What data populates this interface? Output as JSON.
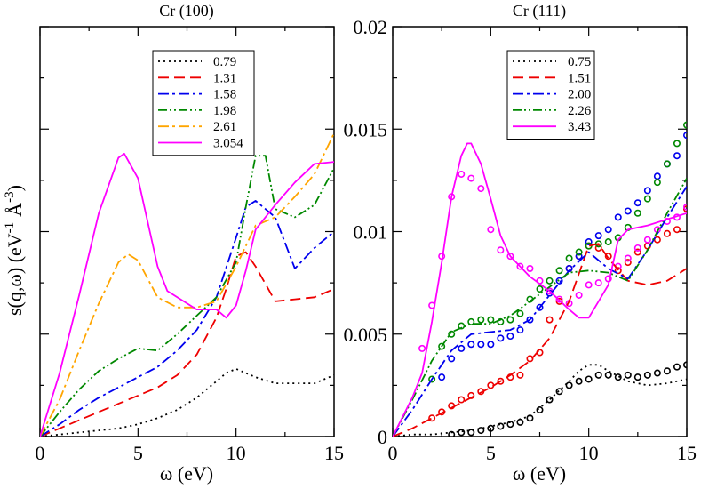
{
  "figure": {
    "ylabel_text": "s(q,ω)  (eV",
    "ylabel_sup1": "-1",
    "ylabel_angstrom": "Å",
    "ylabel_sup2": "-3",
    "ylabel_close": ")"
  },
  "chart_data": [
    {
      "type": "line",
      "title": "Cr (100)",
      "xlabel": "ω  (eV)",
      "ylabel": "s(q,ω)  (eV-1 Å-3)",
      "xlim": [
        0,
        15
      ],
      "ylim": [
        0,
        0.02
      ],
      "xticks": [
        0,
        5,
        10,
        15
      ],
      "xtick_labels": [
        "0",
        "5",
        "10",
        "15"
      ],
      "y_tick_labels_shown": false,
      "legend_position": "top-center",
      "series": [
        {
          "name": "0.79",
          "color": "#000000",
          "dash": "2,4",
          "x": [
            0,
            1,
            2,
            3,
            4,
            5,
            6,
            7,
            8,
            9,
            9.5,
            10,
            10.5,
            11,
            12,
            13,
            14,
            15
          ],
          "y": [
            0,
            0.0001,
            0.0002,
            0.0003,
            0.0004,
            0.0006,
            0.0009,
            0.0013,
            0.0019,
            0.0027,
            0.0031,
            0.0033,
            0.0031,
            0.0029,
            0.0026,
            0.0026,
            0.0026,
            0.003
          ]
        },
        {
          "name": "1.31",
          "color": "#ee0000",
          "dash": "12,6",
          "x": [
            0,
            1,
            2,
            3,
            4,
            5,
            6,
            7,
            8,
            9,
            9.5,
            10,
            10.5,
            11,
            12,
            13,
            14,
            15
          ],
          "y": [
            0,
            0.0004,
            0.0008,
            0.0012,
            0.0016,
            0.002,
            0.0024,
            0.003,
            0.004,
            0.0058,
            0.0072,
            0.0088,
            0.009,
            0.0083,
            0.0066,
            0.0067,
            0.0068,
            0.0072
          ]
        },
        {
          "name": "1.58",
          "color": "#0000ee",
          "dash": "12,4,3,4",
          "x": [
            0,
            1,
            2,
            3,
            4,
            5,
            6,
            7,
            8,
            9,
            10,
            10.5,
            11,
            12,
            13,
            14,
            15
          ],
          "y": [
            0,
            0.0006,
            0.0013,
            0.0019,
            0.0024,
            0.0029,
            0.0034,
            0.0042,
            0.0052,
            0.0068,
            0.0097,
            0.0112,
            0.0115,
            0.0107,
            0.0082,
            0.0092,
            0.01
          ]
        },
        {
          "name": "1.98",
          "color": "#008800",
          "dash": "10,3,2,3,2,3",
          "x": [
            0,
            1,
            2,
            3,
            4,
            5,
            6,
            7,
            8,
            9,
            10,
            10.5,
            11,
            11.5,
            12,
            13,
            14,
            15
          ],
          "y": [
            0,
            0.0012,
            0.0023,
            0.0032,
            0.0038,
            0.0043,
            0.0042,
            0.005,
            0.0059,
            0.0068,
            0.0085,
            0.0112,
            0.0137,
            0.0137,
            0.0111,
            0.0107,
            0.0113,
            0.0131
          ]
        },
        {
          "name": "2.61",
          "color": "#ffa500",
          "dash": "12,4,3,4",
          "x": [
            0,
            1,
            2,
            3,
            4,
            4.5,
            5,
            6,
            7,
            8,
            9,
            10,
            11,
            12,
            13,
            14,
            15
          ],
          "y": [
            0,
            0.0018,
            0.0042,
            0.0065,
            0.0085,
            0.0089,
            0.0086,
            0.0068,
            0.0063,
            0.0063,
            0.0066,
            0.0083,
            0.0103,
            0.0107,
            0.0117,
            0.0128,
            0.0148
          ]
        },
        {
          "name": "3.054",
          "color": "#ff00ff",
          "dash": "",
          "x": [
            0,
            1,
            2,
            3,
            4,
            4.3,
            5,
            6,
            6.5,
            7,
            8,
            9,
            9.5,
            10,
            10.5,
            11,
            12,
            13,
            14,
            15
          ],
          "y": [
            0,
            0.0031,
            0.0069,
            0.0109,
            0.0136,
            0.0138,
            0.0126,
            0.0083,
            0.0071,
            0.0068,
            0.0062,
            0.0062,
            0.0058,
            0.0064,
            0.0081,
            0.0101,
            0.0113,
            0.0124,
            0.0133,
            0.0134
          ]
        }
      ]
    },
    {
      "type": "line",
      "title": "Cr (111)",
      "xlabel": "ω  (eV)",
      "ylabel": "",
      "xlim": [
        0,
        15
      ],
      "ylim": [
        0,
        0.02
      ],
      "xticks": [
        0,
        5,
        10,
        15
      ],
      "xtick_labels": [
        "0",
        "5",
        "10",
        "15"
      ],
      "yticks": [
        0,
        0.005,
        0.01,
        0.015,
        0.02
      ],
      "ytick_labels": [
        "0",
        "0.005",
        "0.01",
        "0.015",
        "0.02"
      ],
      "legend_position": "top-center",
      "series": [
        {
          "name": "0.75",
          "color": "#000000",
          "dash": "2,4",
          "x": [
            0,
            1,
            2,
            3,
            4,
            5,
            6,
            7,
            8,
            9,
            9.5,
            10,
            10.5,
            11,
            12,
            13,
            14,
            15
          ],
          "y": [
            0,
            0.0001,
            0.0001,
            0.0002,
            0.0003,
            0.0005,
            0.0007,
            0.001,
            0.0018,
            0.0027,
            0.0032,
            0.0035,
            0.0035,
            0.0032,
            0.0027,
            0.0025,
            0.0026,
            0.0028
          ]
        },
        {
          "name": "1.51",
          "color": "#ee0000",
          "dash": "12,6",
          "x": [
            0,
            1,
            2,
            3,
            4,
            5,
            6,
            7,
            8,
            9,
            10,
            10.5,
            11,
            12,
            13,
            14,
            15
          ],
          "y": [
            0,
            0.0004,
            0.0009,
            0.0014,
            0.0019,
            0.0024,
            0.003,
            0.0037,
            0.0048,
            0.0066,
            0.0093,
            0.0094,
            0.0087,
            0.0076,
            0.0074,
            0.0076,
            0.0082
          ]
        },
        {
          "name": "2.00",
          "color": "#0000ee",
          "dash": "12,4,3,4",
          "x": [
            0,
            1,
            2,
            3,
            4,
            5,
            6,
            7,
            8,
            9,
            10,
            11,
            12,
            13,
            14,
            15
          ],
          "y": [
            0,
            0.0013,
            0.0028,
            0.0042,
            0.005,
            0.0051,
            0.0052,
            0.0057,
            0.0069,
            0.0081,
            0.009,
            0.0082,
            0.0077,
            0.0091,
            0.0107,
            0.0122
          ]
        },
        {
          "name": "2.26",
          "color": "#008800",
          "dash": "10,3,2,3,2,3",
          "x": [
            0,
            1,
            2,
            3,
            4,
            5,
            6,
            7,
            8,
            9,
            10,
            11,
            12,
            13,
            14,
            15
          ],
          "y": [
            0,
            0.0018,
            0.0037,
            0.0051,
            0.0055,
            0.0055,
            0.0059,
            0.0066,
            0.0073,
            0.008,
            0.0081,
            0.008,
            0.0076,
            0.0091,
            0.0109,
            0.0126
          ]
        },
        {
          "name": "3.43",
          "color": "#ff00ff",
          "dash": "",
          "x": [
            0,
            1,
            1.5,
            2,
            2.5,
            3,
            3.5,
            3.8,
            4,
            4.5,
            5,
            5.5,
            6,
            7,
            8,
            9,
            9.5,
            10,
            10.5,
            11,
            11.5,
            12,
            13,
            14,
            15
          ],
          "y": [
            0,
            0.0019,
            0.0031,
            0.0056,
            0.0085,
            0.0117,
            0.0137,
            0.0143,
            0.0143,
            0.0133,
            0.0116,
            0.0098,
            0.0088,
            0.0078,
            0.0071,
            0.0062,
            0.0058,
            0.0058,
            0.0066,
            0.0074,
            0.0096,
            0.0101,
            0.0103,
            0.0106,
            0.0109
          ]
        }
      ],
      "scatter_series": [
        {
          "name": "0.75 (circles)",
          "color": "#000000",
          "x": [
            3,
            3.5,
            4,
            4.5,
            5,
            5.5,
            6,
            6.5,
            7,
            7.5,
            8,
            8.5,
            9,
            9.5,
            10,
            10.5,
            11,
            11.5,
            12,
            12.5,
            13,
            13.5,
            14,
            14.5,
            15
          ],
          "y": [
            0.0001,
            0.0002,
            0.0002,
            0.0003,
            0.0004,
            0.0005,
            0.0006,
            0.0007,
            0.0009,
            0.0013,
            0.0018,
            0.0022,
            0.0025,
            0.0027,
            0.0028,
            0.003,
            0.003,
            0.0029,
            0.003,
            0.0029,
            0.003,
            0.0031,
            0.0032,
            0.0034,
            0.0035
          ]
        },
        {
          "name": "1.51 (circles)",
          "color": "#ee0000",
          "x": [
            2,
            2.5,
            3,
            3.5,
            4,
            4.5,
            5,
            5.5,
            6,
            6.5,
            7,
            7.5,
            8,
            8.5,
            9,
            9.5,
            10,
            10.5,
            11,
            11.5,
            12,
            12.5,
            13,
            13.5,
            14,
            14.5,
            15
          ],
          "y": [
            0.0009,
            0.0012,
            0.0015,
            0.0018,
            0.002,
            0.0022,
            0.0025,
            0.0027,
            0.0029,
            0.003,
            0.0038,
            0.0041,
            0.0057,
            0.0066,
            0.0082,
            0.0088,
            0.0093,
            0.0092,
            0.0088,
            0.0081,
            0.0085,
            0.009,
            0.0093,
            0.0096,
            0.0099,
            0.0101,
            0.0111
          ]
        },
        {
          "name": "2.00 (circles)",
          "color": "#0000ee",
          "x": [
            2.5,
            3,
            3.5,
            4,
            4.5,
            5,
            5.5,
            6,
            6.5,
            7,
            7.5,
            8,
            8.5,
            9,
            9.5,
            10,
            10.5,
            11,
            11.5,
            12,
            12.5,
            13,
            13.5,
            14,
            14.5,
            15
          ],
          "y": [
            0.0029,
            0.0038,
            0.0043,
            0.0045,
            0.0045,
            0.0045,
            0.0048,
            0.0049,
            0.0052,
            0.0057,
            0.0063,
            0.007,
            0.0076,
            0.0082,
            0.0088,
            0.0095,
            0.0098,
            0.0101,
            0.0107,
            0.011,
            0.0114,
            0.012,
            0.0127,
            0.0133,
            0.0137,
            0.0147
          ]
        },
        {
          "name": "2.26 (circles)",
          "color": "#008800",
          "x": [
            2,
            2.5,
            3,
            3.5,
            4,
            4.5,
            5,
            5.5,
            6,
            6.5,
            7,
            7.5,
            8,
            8.5,
            9,
            9.5,
            10,
            10.5,
            11,
            11.5,
            12,
            12.5,
            13,
            13.5,
            14,
            14.5,
            15
          ],
          "y": [
            0.0028,
            0.0044,
            0.005,
            0.0054,
            0.0056,
            0.0057,
            0.0057,
            0.0056,
            0.0057,
            0.006,
            0.0067,
            0.0072,
            0.0076,
            0.0081,
            0.0087,
            0.009,
            0.0093,
            0.0094,
            0.0095,
            0.0097,
            0.0102,
            0.0109,
            0.0116,
            0.0124,
            0.0133,
            0.0143,
            0.0152
          ]
        },
        {
          "name": "3.43 (circles)",
          "color": "#ff00ff",
          "x": [
            1.5,
            2,
            2.5,
            3,
            3.5,
            4,
            4.5,
            5,
            5.5,
            6,
            6.5,
            7,
            7.5,
            8,
            8.5,
            9,
            9.5,
            10,
            10.5,
            11,
            11.5,
            12,
            12.5,
            13,
            13.5,
            14,
            14.5,
            15
          ],
          "y": [
            0.0043,
            0.0064,
            0.0088,
            0.0117,
            0.0128,
            0.0126,
            0.0121,
            0.0101,
            0.0091,
            0.0088,
            0.0083,
            0.0082,
            0.0076,
            0.0071,
            0.0067,
            0.0065,
            0.0069,
            0.0074,
            0.0075,
            0.0077,
            0.0083,
            0.0087,
            0.0092,
            0.0096,
            0.0101,
            0.0105,
            0.0107,
            0.0112
          ]
        }
      ]
    }
  ]
}
